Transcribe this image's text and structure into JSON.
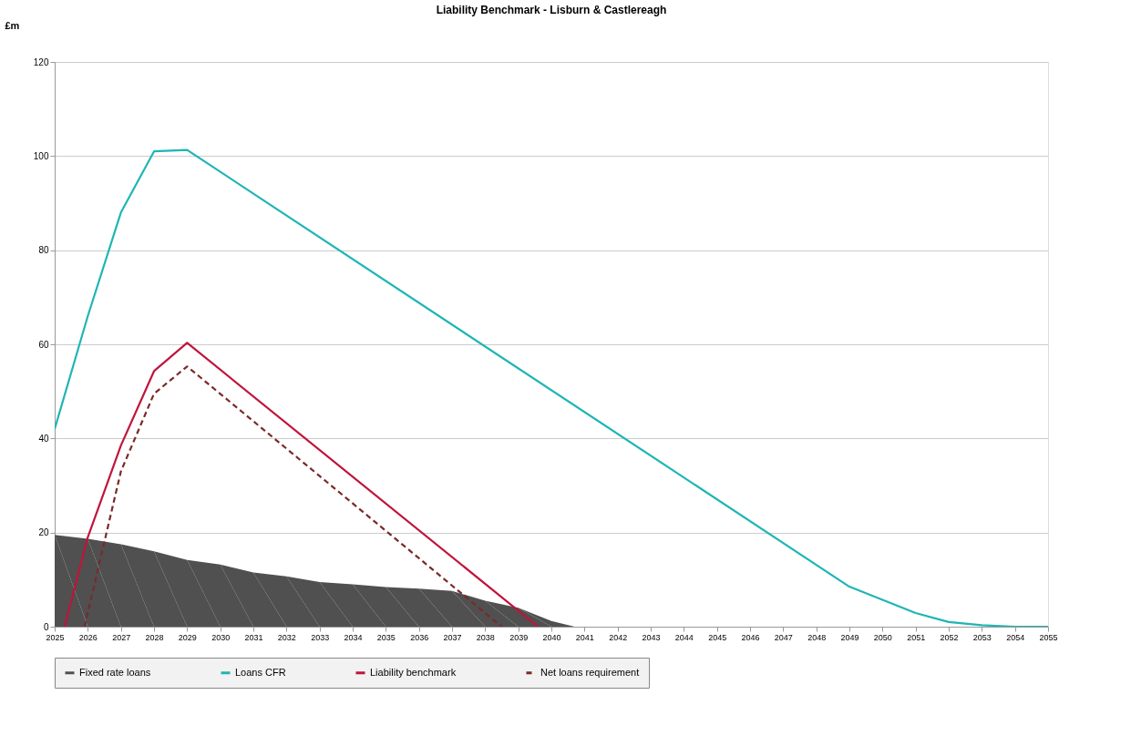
{
  "chart_data": {
    "type": "line",
    "title": "Liability Benchmark - Lisburn & Castlereagh",
    "ylabel": "£m",
    "xlim": [
      2025,
      2055
    ],
    "xticks": [
      2025,
      2026,
      2027,
      2028,
      2029,
      2030,
      2031,
      2032,
      2033,
      2034,
      2035,
      2036,
      2037,
      2038,
      2039,
      2040,
      2041,
      2042,
      2043,
      2044,
      2045,
      2046,
      2047,
      2048,
      2049,
      2050,
      2051,
      2052,
      2053,
      2054,
      2055
    ],
    "ylim": [
      0,
      120
    ],
    "yticks": [
      0,
      20,
      40,
      60,
      80,
      100,
      120
    ],
    "grid": "y",
    "legend": "bottom",
    "series": [
      {
        "name": "Fixed rate loans",
        "type": "area",
        "color": "#505050",
        "x": [
          2025,
          2026,
          2027,
          2028,
          2029,
          2030,
          2031,
          2032,
          2033,
          2034,
          2035,
          2036,
          2037,
          2038,
          2039,
          2040,
          2040.7,
          2055
        ],
        "values": [
          19.5,
          18.7,
          17.5,
          16,
          14.2,
          13.2,
          11.5,
          10.7,
          9.5,
          9,
          8.4,
          8.1,
          7.6,
          5.5,
          4,
          1.2,
          0,
          0
        ]
      },
      {
        "name": "Loans CFR",
        "color": "#1fb5b5",
        "line_style": "solid",
        "x": [
          2025,
          2026,
          2027,
          2028,
          2029,
          2049,
          2050,
          2051,
          2052,
          2053,
          2054,
          2055
        ],
        "values": [
          42,
          66,
          88,
          101,
          101.3,
          8.5,
          5.7,
          2.9,
          1,
          0.3,
          0,
          0
        ]
      },
      {
        "name": "Liability benchmark",
        "color": "#c0143c",
        "line_style": "solid",
        "x": [
          2025.3,
          2026,
          2027,
          2028,
          2029,
          2039.6
        ],
        "values": [
          0,
          19,
          38.5,
          54.3,
          60.3,
          0
        ]
      },
      {
        "name": "Net loans requirement",
        "color": "#7a2a2a",
        "line_style": "dashed",
        "x": [
          2025.9,
          2027,
          2028,
          2029,
          2038.5
        ],
        "values": [
          0,
          33,
          49.5,
          55.3,
          0
        ]
      }
    ]
  }
}
